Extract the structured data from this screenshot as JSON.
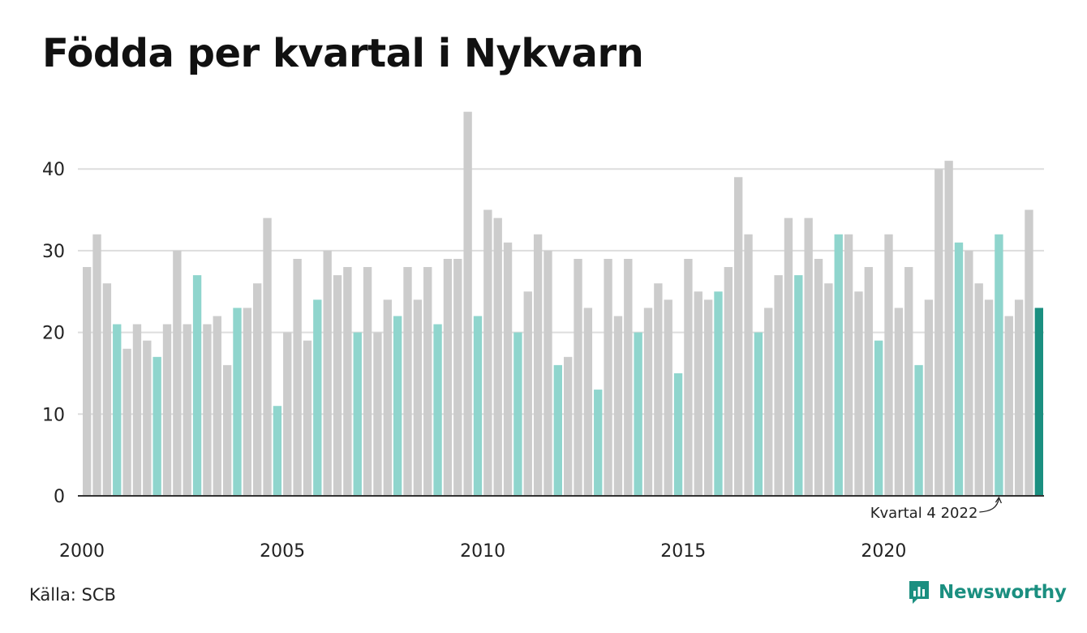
{
  "title": "Födda per kvartal i Nykvarn",
  "source": "Källa: SCB",
  "brand": {
    "name": "Newsworthy",
    "icon": "newsworthy-logo-icon"
  },
  "colors": {
    "other_quarters": "#cccccc",
    "fourth_quarter": "#8fd5cd",
    "latest": "#1b8f80",
    "grid": "#dddddd",
    "axis": "#333333",
    "brand": "#1b8f80"
  },
  "chart_data": {
    "type": "bar",
    "title": "Födda per kvartal i Nykvarn",
    "xlabel": "",
    "ylabel": "",
    "ylim": [
      0,
      47
    ],
    "yticks": [
      0,
      10,
      20,
      30,
      40
    ],
    "xticks": [
      "2000",
      "2005",
      "2010",
      "2015",
      "2020"
    ],
    "grid": true,
    "highlight_rule": "fourth quarter of each year in light teal, latest quarter in dark teal",
    "annotation": {
      "text": "Kvartal 4 2022",
      "target": "2022 Q4"
    },
    "categories": [
      "2000 Q1",
      "2000 Q2",
      "2000 Q3",
      "2000 Q4",
      "2001 Q1",
      "2001 Q2",
      "2001 Q3",
      "2001 Q4",
      "2002 Q1",
      "2002 Q2",
      "2002 Q3",
      "2002 Q4",
      "2003 Q1",
      "2003 Q2",
      "2003 Q3",
      "2003 Q4",
      "2004 Q1",
      "2004 Q2",
      "2004 Q3",
      "2004 Q4",
      "2005 Q1",
      "2005 Q2",
      "2005 Q3",
      "2005 Q4",
      "2006 Q1",
      "2006 Q2",
      "2006 Q3",
      "2006 Q4",
      "2007 Q1",
      "2007 Q2",
      "2007 Q3",
      "2007 Q4",
      "2008 Q1",
      "2008 Q2",
      "2008 Q3",
      "2008 Q4",
      "2009 Q1",
      "2009 Q2",
      "2009 Q3",
      "2009 Q4",
      "2010 Q1",
      "2010 Q2",
      "2010 Q3",
      "2010 Q4",
      "2011 Q1",
      "2011 Q2",
      "2011 Q3",
      "2011 Q4",
      "2012 Q1",
      "2012 Q2",
      "2012 Q3",
      "2012 Q4",
      "2013 Q1",
      "2013 Q2",
      "2013 Q3",
      "2013 Q4",
      "2014 Q1",
      "2014 Q2",
      "2014 Q3",
      "2014 Q4",
      "2015 Q1",
      "2015 Q2",
      "2015 Q3",
      "2015 Q4",
      "2016 Q1",
      "2016 Q2",
      "2016 Q3",
      "2016 Q4",
      "2017 Q1",
      "2017 Q2",
      "2017 Q3",
      "2017 Q4",
      "2018 Q1",
      "2018 Q2",
      "2018 Q3",
      "2018 Q4",
      "2019 Q1",
      "2019 Q2",
      "2019 Q3",
      "2019 Q4",
      "2020 Q1",
      "2020 Q2",
      "2020 Q3",
      "2020 Q4",
      "2021 Q1",
      "2021 Q2",
      "2021 Q3",
      "2021 Q4",
      "2022 Q1",
      "2022 Q2",
      "2022 Q3",
      "2022 Q4",
      "2023 Q1",
      "2023 Q2",
      "2023 Q3",
      "2023 Q4"
    ],
    "values": [
      28,
      32,
      26,
      21,
      18,
      21,
      19,
      17,
      21,
      30,
      21,
      27,
      21,
      22,
      16,
      23,
      23,
      26,
      34,
      11,
      20,
      29,
      19,
      24,
      30,
      27,
      28,
      20,
      28,
      20,
      24,
      22,
      28,
      24,
      28,
      21,
      29,
      29,
      47,
      22,
      35,
      34,
      31,
      20,
      25,
      32,
      30,
      16,
      17,
      29,
      23,
      13,
      29,
      22,
      29,
      20,
      23,
      26,
      24,
      15,
      29,
      25,
      24,
      25,
      28,
      39,
      32,
      20,
      23,
      27,
      34,
      27,
      34,
      29,
      26,
      32,
      32,
      25,
      28,
      19,
      32,
      23,
      28,
      16,
      24,
      40,
      41,
      31,
      30,
      26,
      24,
      32,
      22,
      24,
      35,
      23
    ]
  }
}
